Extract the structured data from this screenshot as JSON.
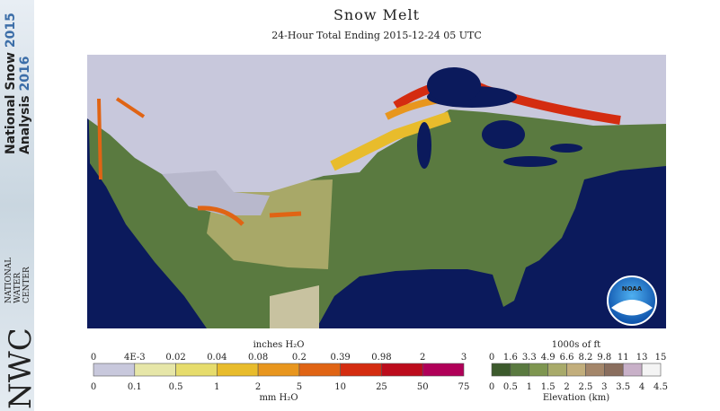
{
  "header": {
    "title": "Snow Melt",
    "subtitle": "24-Hour Total Ending 2015-12-24 05 UTC"
  },
  "sidebar": {
    "line1": "National Snow",
    "year1": "2015",
    "line2": "Analysis",
    "year2": "2016",
    "logo": "NWC",
    "org": [
      "NATIONAL",
      "WATER",
      "CENTER"
    ]
  },
  "map": {
    "badge": "NOAA"
  },
  "melt_legend": {
    "top_unit": "inches H₂O",
    "top_labels": [
      "0",
      "4E-3",
      "0.02",
      "0.04",
      "0.08",
      "0.2",
      "0.39",
      "0.98",
      "2",
      "3"
    ],
    "bottom_labels": [
      "0",
      "0.1",
      "0.5",
      "1",
      "2",
      "5",
      "10",
      "25",
      "50",
      "75"
    ],
    "bottom_unit": "mm H₂O",
    "colors": [
      "#c8c8dc",
      "#e6e6a8",
      "#e6dc6c",
      "#e8bc2c",
      "#e8961e",
      "#e06414",
      "#d42c10",
      "#bc0c1c",
      "#b00058"
    ]
  },
  "elevation_legend": {
    "top_unit": "1000s of ft",
    "top_labels": [
      "0",
      "1.6",
      "3.3",
      "4.9",
      "6.6",
      "8.2",
      "9.8",
      "11",
      "13",
      "15"
    ],
    "bottom_labels": [
      "0",
      "0.5",
      "1",
      "1.5",
      "2",
      "2.5",
      "3",
      "3.5",
      "4",
      "4.5"
    ],
    "bottom_unit": "Elevation (km)",
    "colors": [
      "#3c5a2c",
      "#5a7a40",
      "#7e9650",
      "#a8aa6a",
      "#c2ae7c",
      "#a4866a",
      "#8a6e5e",
      "#c8b0c8",
      "#f4f4f4"
    ]
  }
}
